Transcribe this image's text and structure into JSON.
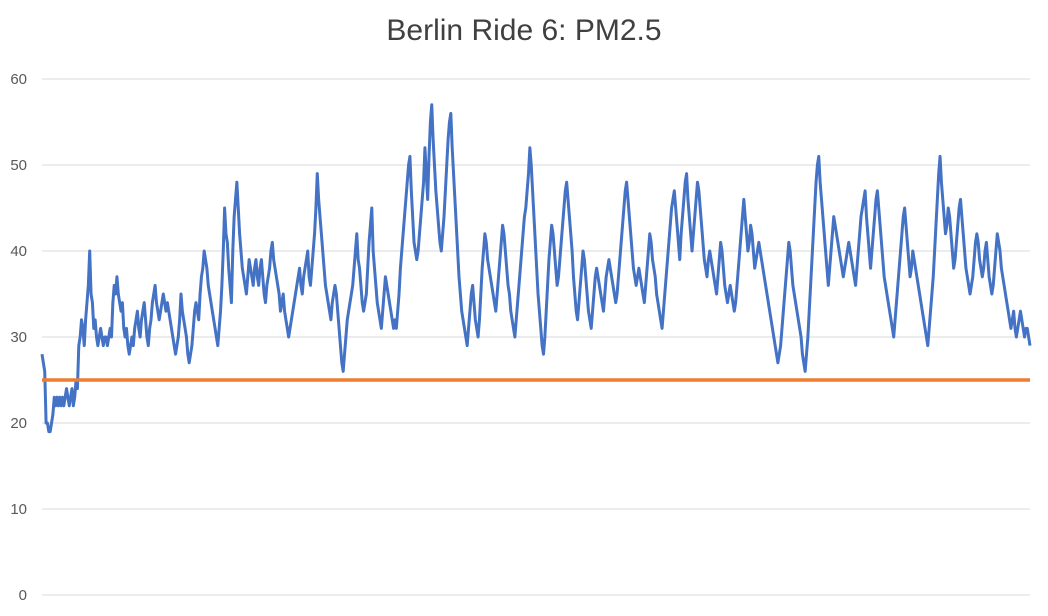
{
  "chart_data": {
    "type": "line",
    "title": "Berlin Ride 6: PM2.5",
    "xlabel": "",
    "ylabel": "",
    "ylim": [
      0,
      60
    ],
    "yticks": [
      "0",
      "10",
      "20",
      "30",
      "40",
      "50",
      "60"
    ],
    "grid": true,
    "legend": "none",
    "series": [
      {
        "color": "#4472c4",
        "values": [
          28,
          27,
          26,
          20,
          20,
          19,
          19,
          20,
          21,
          23,
          22,
          23,
          22,
          23,
          22,
          23,
          22,
          23,
          24,
          23,
          22,
          23,
          24,
          22,
          23,
          25,
          24,
          29,
          30,
          32,
          31,
          29,
          32,
          34,
          36,
          40,
          35,
          34,
          31,
          32,
          30,
          29,
          30,
          31,
          30,
          29,
          30,
          30,
          29,
          30,
          31,
          30,
          34,
          36,
          35,
          37,
          35,
          34,
          33,
          34,
          31,
          30,
          31,
          29,
          28,
          29,
          30,
          29,
          31,
          32,
          33,
          31,
          30,
          32,
          33,
          34,
          32,
          30,
          29,
          31,
          32,
          34,
          35,
          36,
          34,
          33,
          32,
          33,
          34,
          35,
          34,
          33,
          34,
          33,
          32,
          31,
          30,
          29,
          28,
          29,
          30,
          32,
          35,
          33,
          32,
          31,
          30,
          28,
          27,
          28,
          29,
          31,
          33,
          34,
          33,
          32,
          35,
          37,
          38,
          40,
          39,
          38,
          36,
          35,
          34,
          33,
          32,
          31,
          30,
          29,
          31,
          33,
          36,
          40,
          45,
          42,
          41,
          38,
          36,
          34,
          40,
          44,
          46,
          48,
          45,
          42,
          40,
          38,
          37,
          36,
          35,
          37,
          39,
          38,
          37,
          36,
          38,
          39,
          37,
          36,
          38,
          39,
          37,
          35,
          34,
          36,
          37,
          38,
          40,
          41,
          39,
          38,
          37,
          36,
          35,
          33,
          34,
          35,
          33,
          32,
          31,
          30,
          31,
          32,
          33,
          34,
          35,
          36,
          37,
          38,
          36,
          35,
          37,
          38,
          39,
          40,
          37,
          36,
          38,
          40,
          42,
          45,
          49,
          46,
          44,
          42,
          40,
          38,
          36,
          35,
          34,
          33,
          32,
          34,
          35,
          36,
          35,
          33,
          31,
          29,
          27,
          26,
          28,
          30,
          32,
          33,
          34,
          35,
          36,
          38,
          40,
          42,
          39,
          38,
          36,
          34,
          33,
          34,
          35,
          38,
          41,
          43,
          45,
          40,
          38,
          36,
          34,
          33,
          32,
          31,
          33,
          35,
          37,
          36,
          35,
          34,
          33,
          32,
          31,
          32,
          31,
          33,
          35,
          38,
          40,
          42,
          44,
          46,
          48,
          50,
          51,
          47,
          44,
          41,
          40,
          39,
          40,
          42,
          44,
          46,
          48,
          52,
          49,
          46,
          51,
          55,
          57,
          53,
          50,
          47,
          45,
          43,
          41,
          40,
          42,
          44,
          47,
          50,
          53,
          55,
          56,
          52,
          49,
          46,
          43,
          40,
          37,
          35,
          33,
          32,
          31,
          30,
          29,
          31,
          33,
          35,
          36,
          34,
          32,
          31,
          30,
          32,
          35,
          38,
          40,
          42,
          41,
          39,
          38,
          37,
          36,
          35,
          34,
          33,
          35,
          37,
          39,
          41,
          43,
          42,
          40,
          38,
          36,
          35,
          33,
          32,
          31,
          30,
          32,
          34,
          36,
          38,
          40,
          42,
          44,
          45,
          47,
          49,
          52,
          50,
          47,
          44,
          41,
          38,
          35,
          33,
          31,
          29,
          28,
          30,
          33,
          36,
          39,
          41,
          43,
          42,
          40,
          38,
          36,
          37,
          39,
          41,
          43,
          45,
          47,
          48,
          46,
          44,
          42,
          40,
          37,
          35,
          33,
          32,
          34,
          36,
          38,
          40,
          39,
          37,
          35,
          33,
          32,
          31,
          33,
          35,
          37,
          38,
          37,
          36,
          35,
          34,
          33,
          35,
          37,
          38,
          39,
          38,
          37,
          36,
          35,
          34,
          35,
          37,
          39,
          41,
          43,
          45,
          47,
          48,
          46,
          44,
          42,
          40,
          38,
          37,
          36,
          37,
          38,
          37,
          36,
          35,
          34,
          36,
          38,
          40,
          42,
          41,
          39,
          38,
          37,
          35,
          34,
          33,
          32,
          31,
          33,
          35,
          37,
          39,
          41,
          43,
          45,
          46,
          47,
          45,
          43,
          41,
          39,
          42,
          44,
          46,
          48,
          49,
          46,
          44,
          42,
          40,
          42,
          44,
          46,
          48,
          47,
          45,
          43,
          41,
          39,
          38,
          37,
          39,
          40,
          39,
          38,
          37,
          36,
          35,
          37,
          39,
          41,
          40,
          38,
          36,
          35,
          34,
          35,
          36,
          35,
          34,
          33,
          34,
          36,
          38,
          40,
          42,
          44,
          46,
          44,
          42,
          40,
          41,
          43,
          42,
          40,
          38,
          39,
          40,
          41,
          40,
          39,
          38,
          37,
          36,
          35,
          34,
          33,
          32,
          31,
          30,
          29,
          28,
          27,
          28,
          29,
          31,
          33,
          35,
          37,
          39,
          41,
          40,
          38,
          36,
          35,
          34,
          33,
          32,
          31,
          30,
          28,
          27,
          26,
          28,
          30,
          33,
          36,
          39,
          42,
          45,
          48,
          50,
          51,
          48,
          46,
          44,
          42,
          40,
          38,
          36,
          38,
          40,
          42,
          44,
          43,
          42,
          41,
          40,
          39,
          38,
          37,
          38,
          39,
          40,
          41,
          40,
          39,
          38,
          37,
          36,
          38,
          40,
          42,
          44,
          45,
          46,
          47,
          44,
          42,
          40,
          38,
          40,
          42,
          44,
          46,
          47,
          45,
          43,
          41,
          39,
          37,
          36,
          35,
          34,
          33,
          32,
          31,
          30,
          32,
          34,
          36,
          38,
          40,
          42,
          44,
          45,
          43,
          41,
          39,
          37,
          38,
          40,
          39,
          38,
          37,
          36,
          35,
          34,
          33,
          32,
          31,
          30,
          29,
          31,
          33,
          35,
          37,
          40,
          43,
          46,
          49,
          51,
          48,
          46,
          44,
          42,
          43,
          45,
          44,
          42,
          40,
          38,
          39,
          41,
          43,
          45,
          46,
          44,
          42,
          40,
          38,
          37,
          36,
          35,
          36,
          37,
          39,
          41,
          42,
          41,
          39,
          38,
          37,
          38,
          40,
          41,
          39,
          37,
          36,
          35,
          36,
          38,
          40,
          42,
          41,
          40,
          38,
          37,
          36,
          35,
          34,
          33,
          32,
          31,
          32,
          33,
          31,
          30,
          31,
          32,
          33,
          32,
          31,
          30,
          31,
          31,
          30,
          29
        ]
      },
      {
        "color": "#ed7d31",
        "values": [
          25,
          25
        ]
      }
    ]
  }
}
